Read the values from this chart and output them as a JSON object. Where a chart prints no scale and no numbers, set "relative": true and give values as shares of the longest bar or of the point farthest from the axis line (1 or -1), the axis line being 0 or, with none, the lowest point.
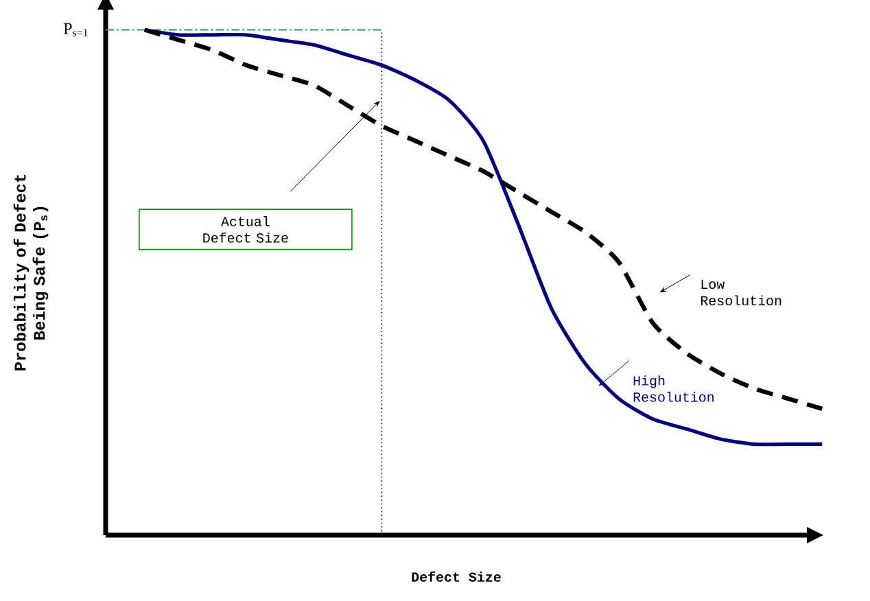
{
  "chart_data": {
    "type": "line",
    "relative": true,
    "xlabel": "Defect Size",
    "ylabel": "Probability of Defect Being Safe (P$_{s}$)",
    "categories": [
      null,
      null,
      null,
      null,
      null,
      null,
      null,
      null,
      null,
      null,
      null,
      null,
      null,
      null,
      null,
      null,
      null,
      null,
      null,
      null,
      null
    ],
    "series": [
      {
        "name": "High Resolution",
        "color": "#000080",
        "line_style": "solid",
        "values": [
          1.0,
          0.99,
          0.99,
          0.99,
          0.98,
          0.97,
          0.95,
          0.93,
          0.9,
          0.86,
          0.78,
          0.62,
          0.45,
          0.34,
          0.27,
          0.23,
          0.21,
          0.19,
          0.18,
          0.18,
          0.18
        ]
      },
      {
        "name": "Low Resolution",
        "color": "#000000",
        "line_style": "dashed",
        "values": [
          1.0,
          0.98,
          0.96,
          0.93,
          0.91,
          0.89,
          0.85,
          0.81,
          0.78,
          0.75,
          0.72,
          0.68,
          0.64,
          0.6,
          0.54,
          0.42,
          0.36,
          0.32,
          0.29,
          0.27,
          0.25
        ]
      }
    ],
    "ref_lines": [
      {
        "axis": "y",
        "value": 1,
        "label": "P$_{s=1}$",
        "color": "#339966",
        "line_style": "dashdot"
      }
    ],
    "legend": "right",
    "annotations": [
      "Actual Defect Size"
    ]
  }
}
